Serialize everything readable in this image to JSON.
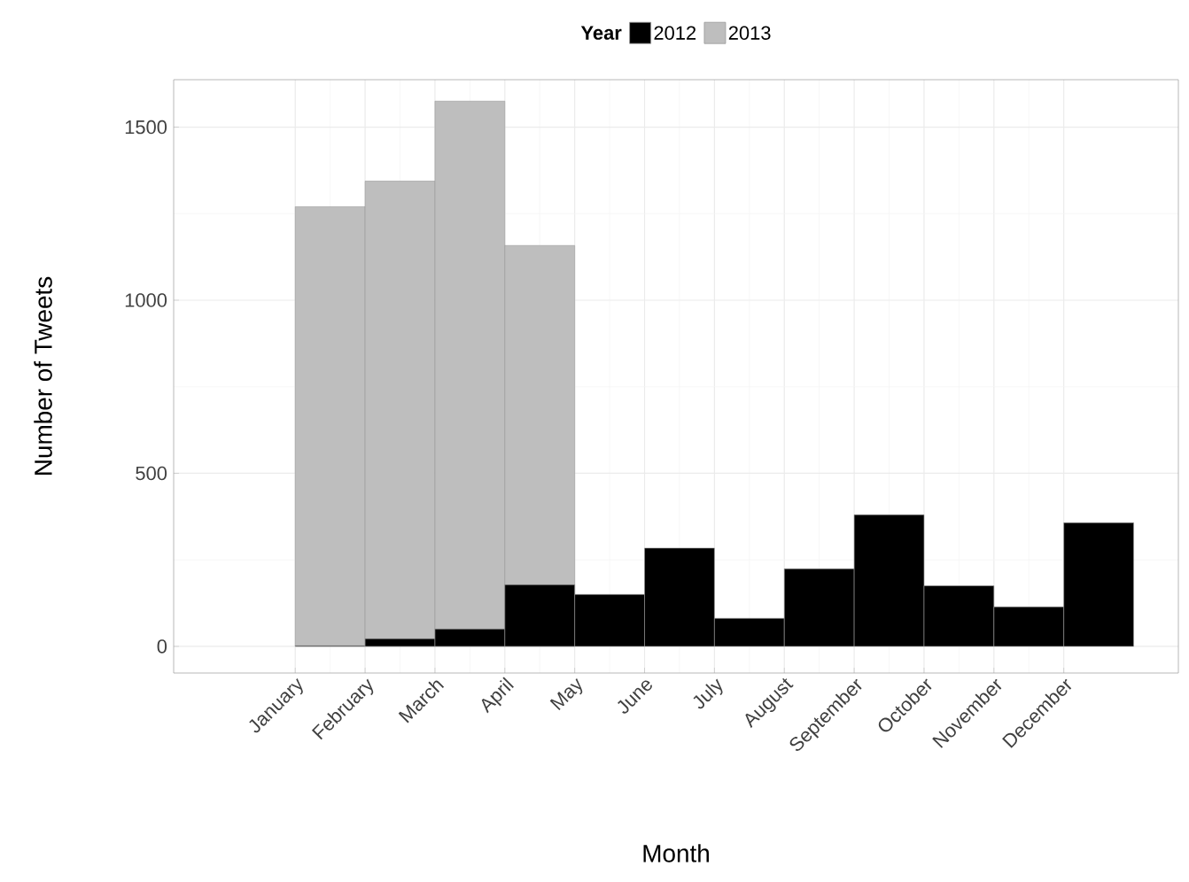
{
  "chart_data": {
    "type": "bar",
    "xlabel": "Month",
    "ylabel": "Number of Tweets",
    "legend_title": "Year",
    "legend": "top",
    "grid": true,
    "categories": [
      "January",
      "February",
      "March",
      "April",
      "May",
      "June",
      "July",
      "August",
      "September",
      "October",
      "November",
      "December"
    ],
    "ylim": [
      -77,
      1637
    ],
    "yticks": [
      0,
      500,
      1000,
      1500
    ],
    "series": [
      {
        "name": "2013",
        "color": "#bebebe",
        "values": [
          1270,
          1344,
          1575,
          1158,
          null,
          null,
          null,
          null,
          null,
          null,
          null,
          null
        ]
      },
      {
        "name": "2012",
        "color": "#000000",
        "values": [
          2,
          22,
          50,
          178,
          150,
          284,
          81,
          224,
          380,
          175,
          114,
          357
        ]
      }
    ]
  }
}
